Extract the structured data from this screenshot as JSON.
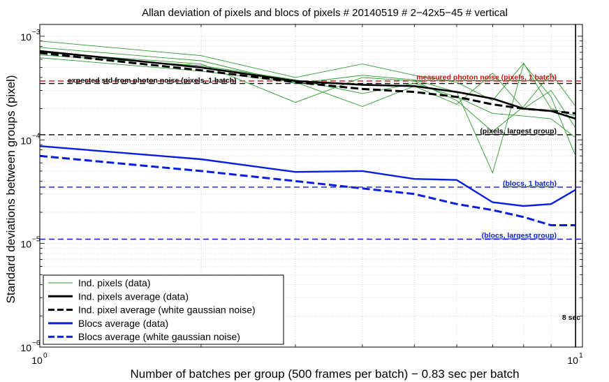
{
  "chart_data": {
    "type": "line",
    "title": "Allan deviation of pixels and blocs of pixels # 20140519 # 2−42x5−45 # vertical",
    "xlabel": "Number of batches per group (500 frames per batch) − 0.83 sec per batch",
    "ylabel": "Standard deviations between groups (pixel)",
    "xscale": "log",
    "yscale": "log",
    "xlim": [
      1,
      10.3
    ],
    "ylim": [
      1e-06,
      0.0013
    ],
    "grid": true,
    "legend_position": "bottom-left",
    "x_ticks": [
      {
        "value": 1,
        "base": "10",
        "exp": "0"
      },
      {
        "value": 10,
        "base": "10",
        "exp": "1"
      }
    ],
    "y_ticks": [
      {
        "value": 1e-06,
        "base": "10",
        "exp": "−6"
      },
      {
        "value": 1e-05,
        "base": "10",
        "exp": "−5"
      },
      {
        "value": 0.0001,
        "base": "10",
        "exp": "−4"
      },
      {
        "value": 0.001,
        "base": "10",
        "exp": "−3"
      }
    ],
    "individual_pixels": {
      "color": "#2e9b2e",
      "x": [
        1,
        2,
        3,
        4,
        5,
        6,
        7,
        8,
        9,
        10
      ],
      "series": [
        {
          "values": [
            0.0009,
            0.00065,
            0.0004,
            0.00054,
            0.00042,
            0.00036,
            0.00024,
            0.00055,
            0.0002,
            0.00017
          ]
        },
        {
          "values": [
            0.00078,
            0.00058,
            0.00035,
            0.00042,
            0.00038,
            0.00029,
            4.8e-05,
            0.00054,
            0.00026,
            7e-05
          ]
        },
        {
          "values": [
            0.0007,
            0.00054,
            0.00023,
            0.0004,
            0.00037,
            0.00024,
            0.00012,
            0.00021,
            0.00044,
            0.00021
          ]
        },
        {
          "values": [
            0.00062,
            0.00046,
            0.00036,
            0.00021,
            0.00033,
            0.00022,
            0.00044,
            0.0002,
            0.0003,
            0.00013
          ]
        },
        {
          "values": [
            0.00066,
            0.00052,
            0.00038,
            0.00028,
            0.00035,
            0.00026,
            0.00018,
            0.00017,
            0.00016,
            0.000105
          ]
        }
      ]
    },
    "pixels_average": {
      "color": "#000000",
      "x": [
        1,
        2,
        3,
        4,
        5,
        6,
        7,
        8,
        9,
        10
      ],
      "values": [
        0.00072,
        0.0005,
        0.00037,
        0.00034,
        0.00033,
        0.00029,
        0.00025,
        0.0002,
        0.00019,
        0.00016
      ]
    },
    "pixel_average_gaussian": {
      "color": "#000000",
      "x": [
        1,
        2,
        3,
        4,
        5,
        6,
        7,
        8,
        9,
        10
      ],
      "values": [
        0.00069,
        0.00047,
        0.00036,
        0.00031,
        0.00029,
        0.00026,
        0.00022,
        0.0002,
        0.00019,
        0.00018
      ]
    },
    "blocs_average": {
      "color": "#0a1ee0",
      "x": [
        1,
        2,
        3,
        4,
        5,
        6,
        7,
        8,
        9,
        10
      ],
      "values": [
        8.7e-05,
        6.5e-05,
        4.9e-05,
        5e-05,
        4.2e-05,
        4.1e-05,
        2.5e-05,
        2.3e-05,
        2.4e-05,
        3.3e-05
      ]
    },
    "blocs_average_gaussian": {
      "color": "#0a1ee0",
      "x": [
        1,
        2,
        3,
        4,
        5,
        6,
        7,
        8,
        9,
        10
      ],
      "values": [
        7e-05,
        5e-05,
        4e-05,
        3.4e-05,
        3e-05,
        2.4e-05,
        2.1e-05,
        1.8e-05,
        1.5e-05,
        1.5e-05
      ]
    },
    "reference_lines": [
      {
        "value": 0.00037,
        "color": "#cc1111",
        "label": "measured photon noise (pixels, 1 batch)",
        "label_pos": "right"
      },
      {
        "value": 0.00035,
        "color": "#000000",
        "label": "expected std from photon noise (pixels, 1 batch)",
        "label_pos": "left"
      },
      {
        "value": 0.000112,
        "color": "#000000",
        "label": "(pixels, largest group)",
        "label_pos": "right"
      },
      {
        "value": 3.5e-05,
        "color": "#0a1ee0",
        "label": "(blocs, 1 batch)",
        "label_pos": "right"
      },
      {
        "value": 1.1e-05,
        "color": "#0a1ee0",
        "label": "(blocs, largest group)",
        "label_pos": "right"
      }
    ],
    "vertical_marker": {
      "x": 10,
      "label": "8 sec"
    },
    "legend": [
      {
        "label": "Ind. pixels (data)",
        "color": "#2e9b2e",
        "style": "thin"
      },
      {
        "label": "Ind. pixels average (data)",
        "color": "#000000",
        "style": "solid"
      },
      {
        "label": "Ind. pixel average (white gaussian noise)",
        "color": "#000000",
        "style": "dashed"
      },
      {
        "label": "Blocs average (data)",
        "color": "#0a1ee0",
        "style": "solid"
      },
      {
        "label": "Blocs average (white gaussian noise)",
        "color": "#0a1ee0",
        "style": "dashed"
      }
    ]
  }
}
